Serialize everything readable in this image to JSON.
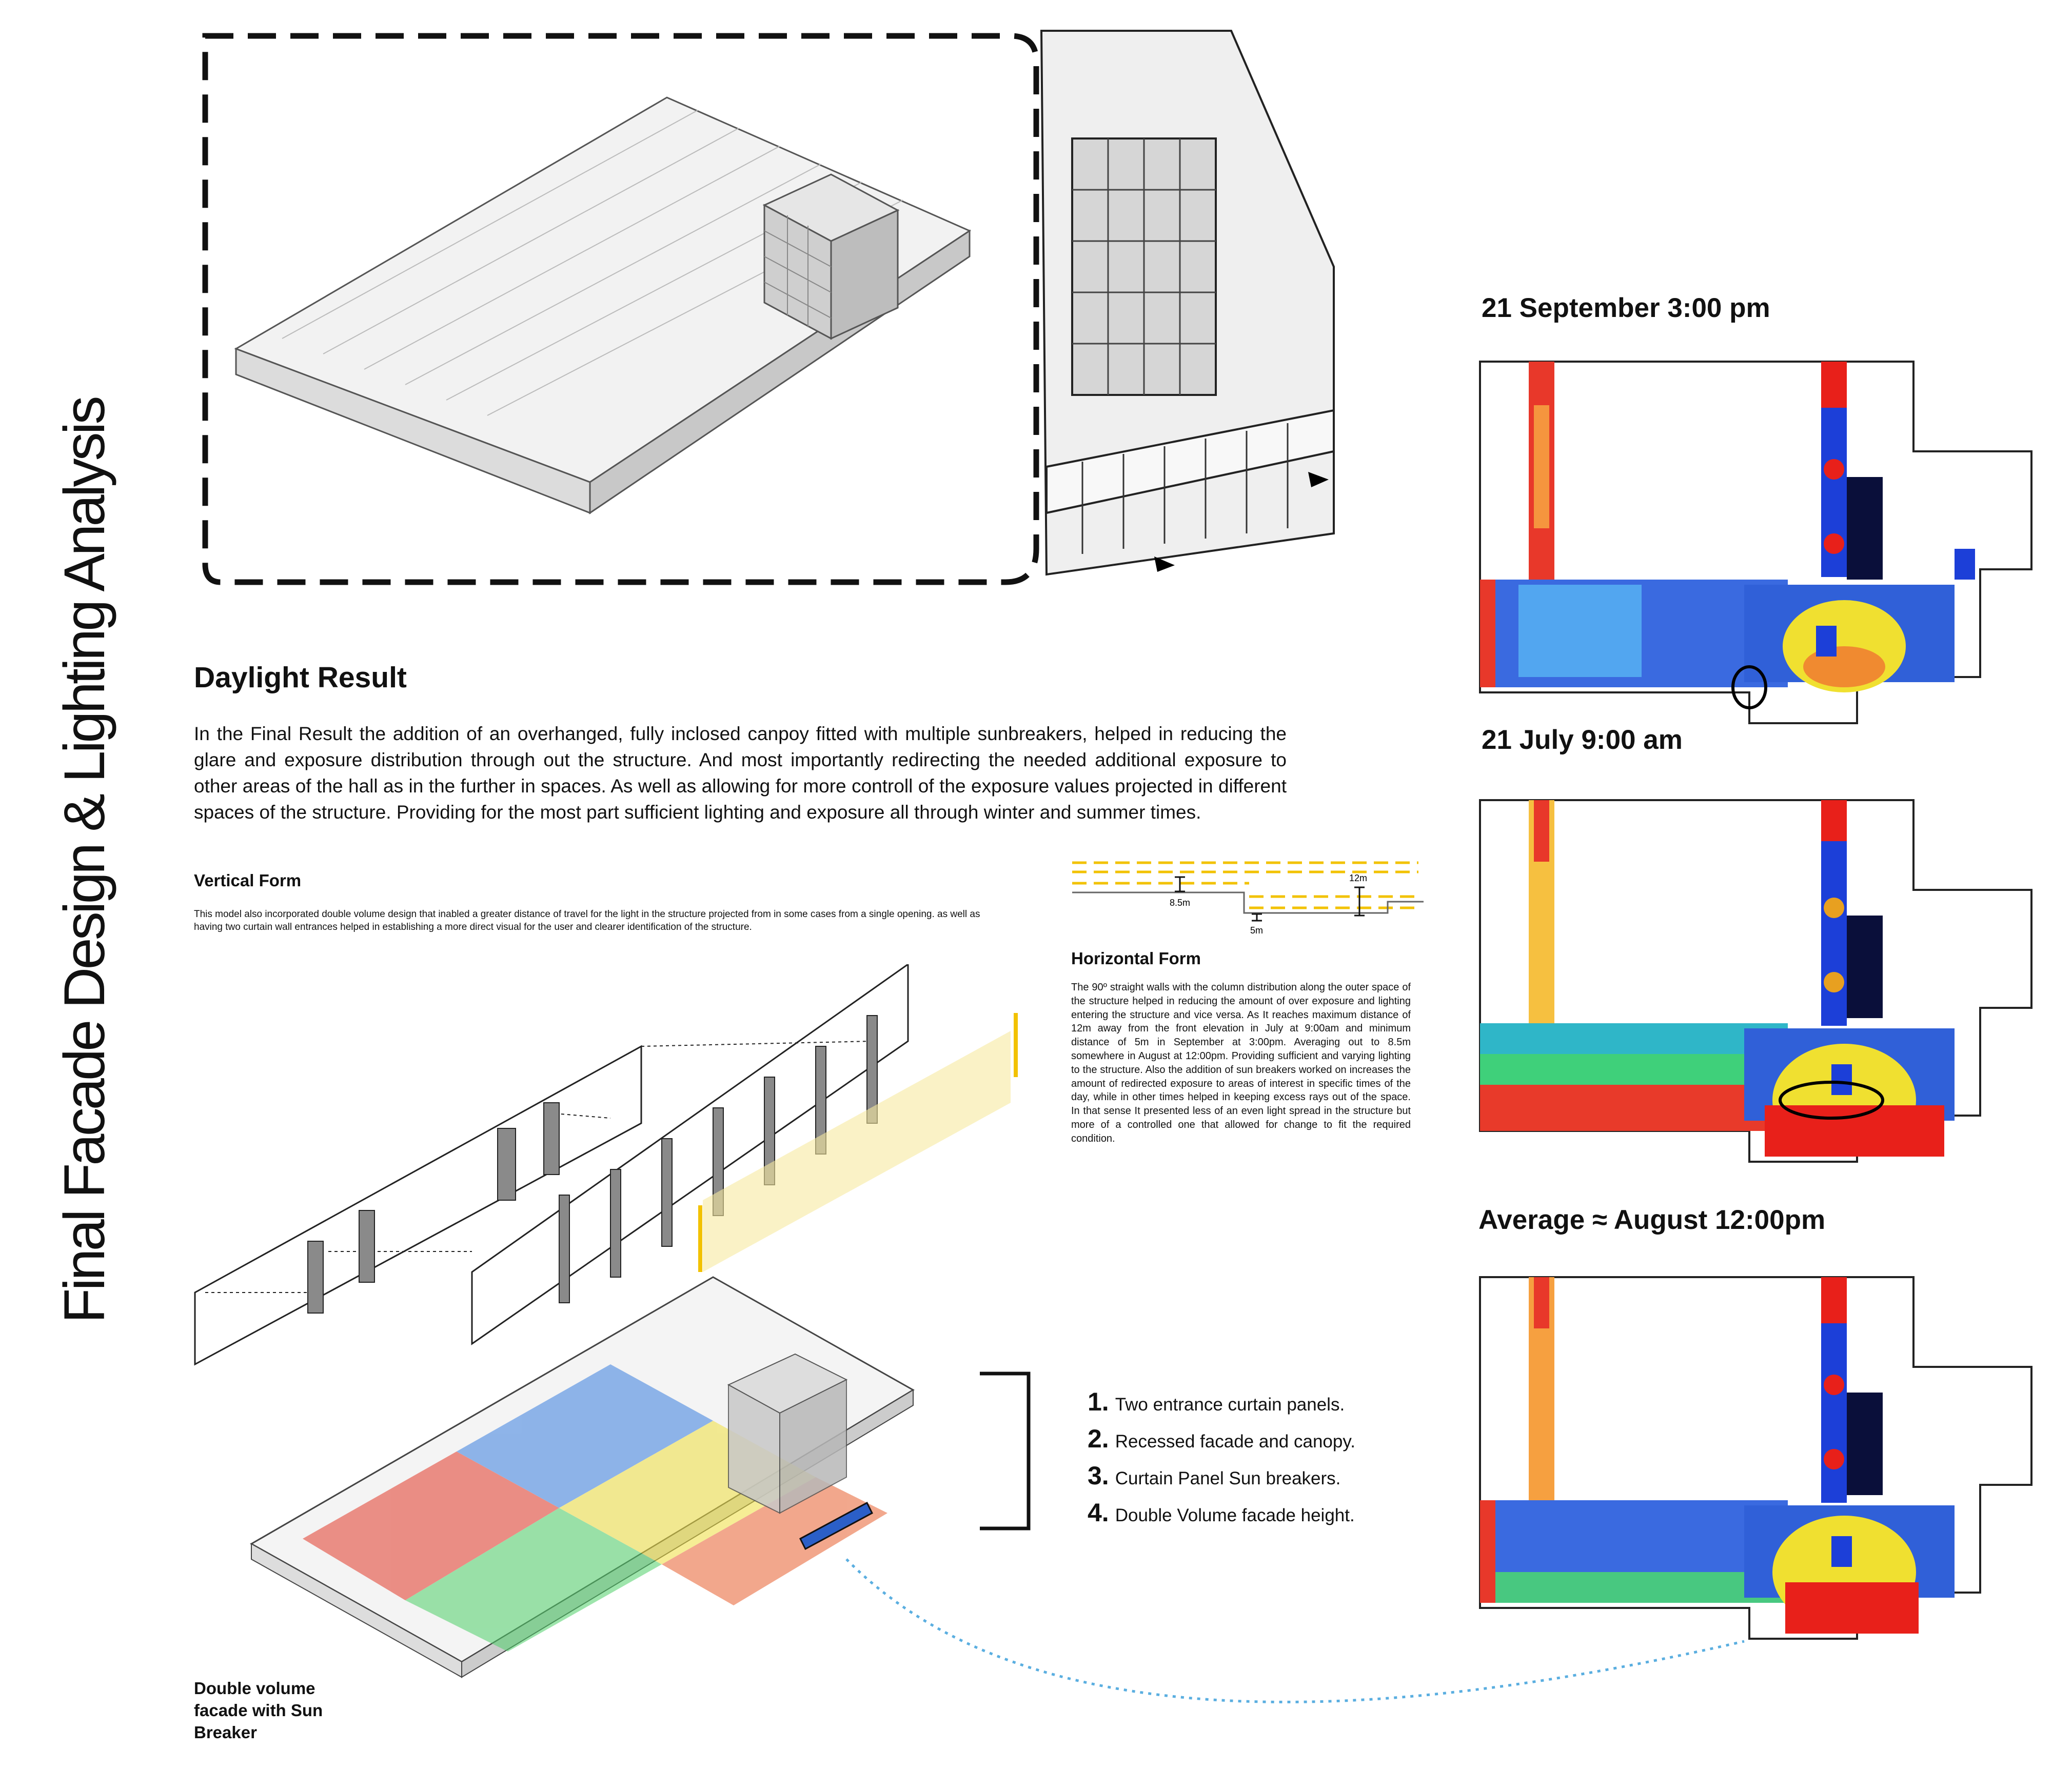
{
  "page": {
    "vertical_title": "Final Facade Design & Lighting Analysis"
  },
  "daylight": {
    "heading": "Daylight Result",
    "body": "In the Final Result the addition of an overhanged, fully inclosed canpoy fitted with multiple sunbreakers, helped in reducing the glare and exposure distribution through out the structure. And most importantly redirecting the needed additional exposure to other areas of the hall as in the further in spaces. As well as allowing for more controll of the exposure values projected in different spaces of the structure. Providing for the most part sufficient lighting and exposure all through winter and summer times."
  },
  "vertical_form": {
    "heading": "Vertical Form",
    "body": "This model also incorporated double volume design that inabled a greater distance of travel for the light in the structure projected from in some cases from a single opening. as well as having two curtain wall entrances helped in establishing a more direct visual for the user and clearer identification of the structure."
  },
  "horizontal_form": {
    "heading": "Horizontal Form",
    "body": "The 90º straight walls with the column distribution along the outer space of the structure helped in reducing the amount of over exposure and lighting entering the structure and vice versa. As It reaches maximum distance of 12m away from the front elevation in July at 9:00am and minimum distance of 5m in September at 3:00pm. Averaging out to 8.5m somewhere in August at 12:00pm. Providing sufficient and varying lighting to the structure. Also the addition of sun breakers worked on increases the amount of redirected exposure to areas of interest in specific times of the day, while in other times helped in keeping excess rays out of the space. In that sense It presented less of an even light spread in the structure but more of a controlled one that allowed for change to fit the required condition.",
    "dim_12": "12m",
    "dim_85": "8.5m",
    "dim_5": "5m"
  },
  "features": [
    {
      "num": "1.",
      "label": "Two entrance curtain panels."
    },
    {
      "num": "2.",
      "label": "Recessed facade and canopy."
    },
    {
      "num": "3.",
      "label": "Curtain Panel Sun breakers."
    },
    {
      "num": "4.",
      "label": "Double Volume facade height."
    }
  ],
  "caption": {
    "line1": "Double volume",
    "line2": "facade with Sun",
    "line3": "Breaker"
  },
  "maps": {
    "m1_title": "21 September 3:00 pm",
    "m2_title": "21 July 9:00 am",
    "m3_title": "Average ≈ August 12:00pm"
  },
  "colors": {
    "accent_yellow": "#f2c200",
    "dotted_blue": "#5aaee0",
    "heat_red": "#e8201a",
    "heat_blue": "#1c3fd8",
    "heat_dark": "#0a0f3a"
  }
}
